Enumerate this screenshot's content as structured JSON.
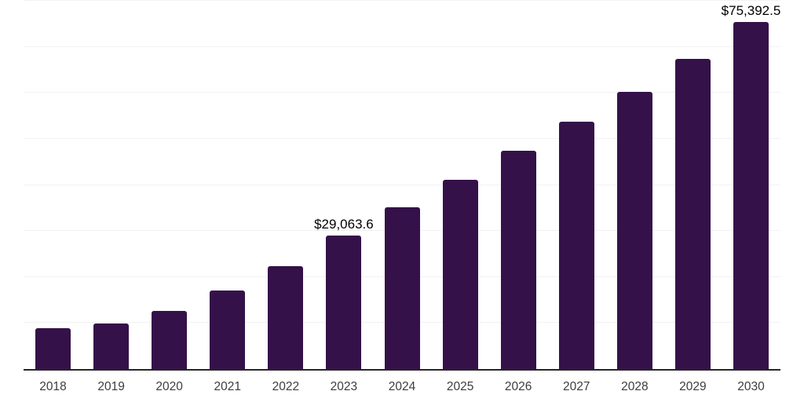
{
  "chart_data": {
    "type": "bar",
    "title": "",
    "xlabel": "",
    "ylabel": "",
    "categories": [
      "2018",
      "2019",
      "2020",
      "2021",
      "2022",
      "2023",
      "2024",
      "2025",
      "2026",
      "2027",
      "2028",
      "2029",
      "2030"
    ],
    "values": [
      8950,
      9980,
      12540,
      17060,
      22350,
      29063.6,
      35140,
      41110,
      47430,
      53740,
      60220,
      67390,
      75392.5
    ],
    "point_labels": [
      "",
      "",
      "",
      "",
      "",
      "$29,063.6",
      "",
      "",
      "",
      "",
      "",
      "",
      "$75,392.5"
    ],
    "ylim": [
      0,
      80000
    ],
    "grid_step": 10000,
    "grid": "horizontal",
    "legend": "none",
    "colors": {
      "bar": "#341249",
      "grid": "#f2f2f2",
      "axis": "#262626",
      "value_label": "#000000",
      "tick_label": "#3d3d3d",
      "background": "#ffffff"
    }
  }
}
